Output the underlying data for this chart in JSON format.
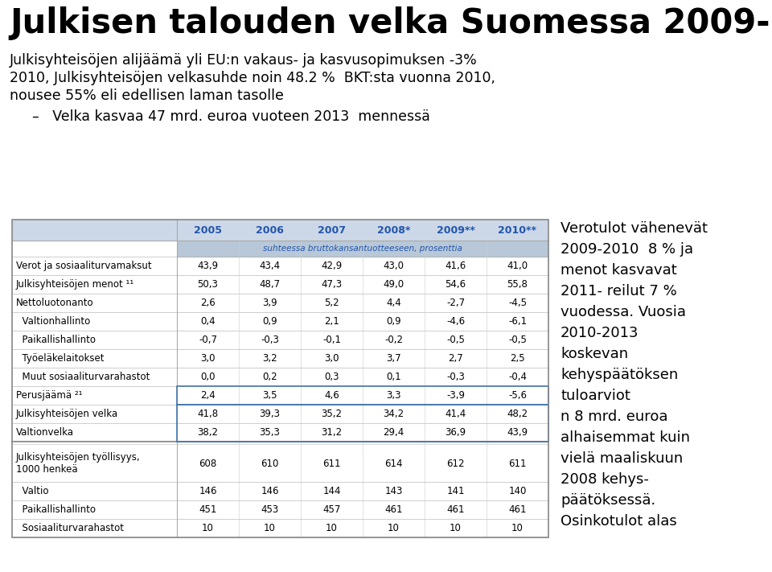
{
  "title": "Julkisen talouden velka Suomessa 2009-",
  "subtitle_lines": [
    "Julkisyhteisöjen alijäämä yli EU:n vakaus- ja kasvusopimuksen -3%",
    "2010, Julkisyhteisöjen velkasuhde noin 48.2 %  BKT:sta vuonna 2010,",
    "nousee 55% eli edellisen laman tasolle"
  ],
  "bullet": "–   Velka kasvaa 47 mrd. euroa vuoteen 2013  mennessä",
  "col_headers": [
    "2005",
    "2006",
    "2007",
    "2008*",
    "2009**",
    "2010**"
  ],
  "subheader": "suhteessa bruttokansantuotteeseen, prosenttia",
  "rows_main": [
    [
      "Verot ja sosiaaliturvamaksut",
      "43,9",
      "43,4",
      "42,9",
      "43,0",
      "41,6",
      "41,0"
    ],
    [
      "Julkisyhteisöjen menot ¹¹",
      "50,3",
      "48,7",
      "47,3",
      "49,0",
      "54,6",
      "55,8"
    ],
    [
      "Nettoluotonanto",
      "2,6",
      "3,9",
      "5,2",
      "4,4",
      "-2,7",
      "-4,5"
    ],
    [
      "  Valtionhallinto",
      "0,4",
      "0,9",
      "2,1",
      "0,9",
      "-4,6",
      "-6,1"
    ],
    [
      "  Paikallishallinto",
      "-0,7",
      "-0,3",
      "-0,1",
      "-0,2",
      "-0,5",
      "-0,5"
    ],
    [
      "  Työeläkelaitokset",
      "3,0",
      "3,2",
      "3,0",
      "3,7",
      "2,7",
      "2,5"
    ],
    [
      "  Muut sosiaaliturvarahastot",
      "0,0",
      "0,2",
      "0,3",
      "0,1",
      "-0,3",
      "-0,4"
    ],
    [
      "Perusjäämä ²¹",
      "2,4",
      "3,5",
      "4,6",
      "3,3",
      "-3,9",
      "-5,6"
    ],
    [
      "Julkisyhteisöjen velka",
      "41,8",
      "39,3",
      "35,2",
      "34,2",
      "41,4",
      "48,2"
    ],
    [
      "Valtionvelka",
      "38,2",
      "35,3",
      "31,2",
      "29,4",
      "36,9",
      "43,9"
    ]
  ],
  "rows_employment": [
    [
      "Julkisyhteisöjen työllisyys,\n1000 henkeä",
      "608",
      "610",
      "611",
      "614",
      "612",
      "611"
    ],
    [
      "  Valtio",
      "146",
      "146",
      "144",
      "143",
      "141",
      "140"
    ],
    [
      "  Paikallishallinto",
      "451",
      "453",
      "457",
      "461",
      "461",
      "461"
    ],
    [
      "  Sosiaaliturvarahastot",
      "10",
      "10",
      "10",
      "10",
      "10",
      "10"
    ]
  ],
  "sidebar_lines": [
    "Verotulot vähenevät",
    "2009-2010  8 % ja",
    "menot kasvavat",
    "2011- reilut 7 %",
    "vuodessa. Vuosia",
    "2010-2013",
    "koskevan",
    "kehyspäätöksen",
    "tuloarviot",
    "n 8 mrd. euroa",
    "alhaisemmat kuin",
    "vielä maaliskuun",
    "2008 kehys-",
    "päätöksessä.",
    "Osinkotulot alas"
  ],
  "bg_color": "#ffffff",
  "header_bg": "#ccd8e8",
  "subheader_bg": "#b8c8d8",
  "header_text_color": "#2255aa",
  "subheader_text_color": "#2255aa",
  "border_color": "#666666",
  "text_color": "#000000",
  "row_odd_bg": "#f0f0f0",
  "row_even_bg": "#ffffff"
}
